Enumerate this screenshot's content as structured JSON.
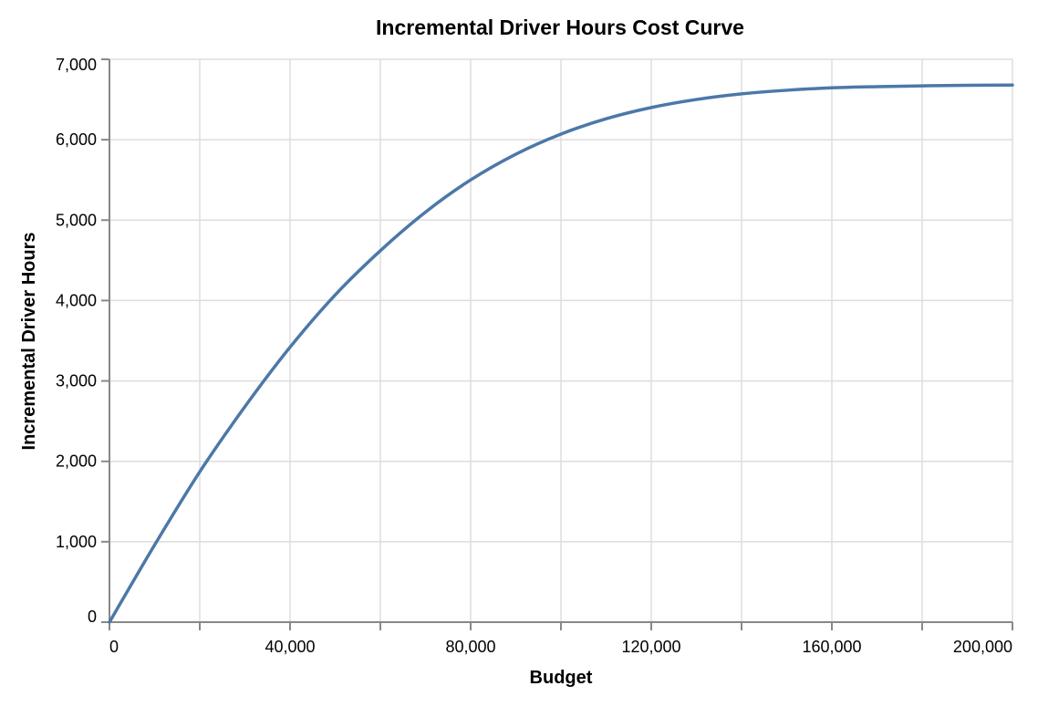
{
  "chart_data": {
    "type": "line",
    "title": "Incremental Driver Hours Cost Curve",
    "xlabel": "Budget",
    "ylabel": "Incremental Driver Hours",
    "xlim": [
      0,
      200000
    ],
    "ylim": [
      0,
      7000
    ],
    "x_ticks": [
      0,
      20000,
      40000,
      60000,
      80000,
      100000,
      120000,
      140000,
      160000,
      180000,
      200000
    ],
    "x_tick_labels": [
      "0",
      "",
      "40,000",
      "",
      "80,000",
      "",
      "120,000",
      "",
      "160,000",
      "",
      "200,000"
    ],
    "y_ticks": [
      0,
      1000,
      2000,
      3000,
      4000,
      5000,
      6000,
      7000
    ],
    "y_tick_labels": [
      "0",
      "1,000",
      "2,000",
      "3,000",
      "4,000",
      "5,000",
      "6,000",
      "7,000"
    ],
    "grid": true,
    "legend": "none",
    "series": [
      {
        "color": "#4c78a8",
        "x": [
          0,
          10000,
          20000,
          30000,
          40000,
          50000,
          60000,
          70000,
          80000,
          90000,
          100000,
          110000,
          120000,
          130000,
          140000,
          150000,
          160000,
          170000,
          180000,
          190000,
          200000
        ],
        "y": [
          0,
          960,
          1870,
          2680,
          3420,
          4070,
          4620,
          5100,
          5500,
          5820,
          6070,
          6260,
          6400,
          6500,
          6570,
          6615,
          6645,
          6660,
          6670,
          6677,
          6680
        ]
      }
    ]
  }
}
